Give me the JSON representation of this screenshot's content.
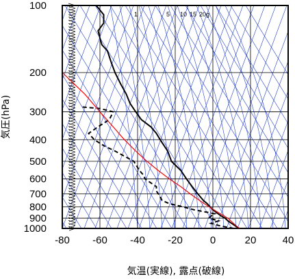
{
  "chart_data": {
    "type": "line",
    "title": "",
    "xlabel": "気温(実線), 露点(破線)",
    "ylabel": "気圧(hPa)",
    "xlim": [
      -80,
      40
    ],
    "ylim": [
      1000,
      100
    ],
    "y_scale": "log",
    "x_ticks": [
      "-80",
      "-60",
      "-40",
      "-20",
      "0",
      "20",
      "40"
    ],
    "y_ticks": [
      "100",
      "200",
      "300",
      "400",
      "500",
      "600",
      "700",
      "800",
      "900",
      "1000"
    ],
    "mixing_ratio_labels": [
      "1",
      "5",
      "10",
      "15",
      "20g"
    ],
    "series": [
      {
        "kind": "temperature",
        "style": "solid",
        "color": "#000000",
        "points": [
          [
            1000,
            14
          ],
          [
            975,
            12
          ],
          [
            950,
            10
          ],
          [
            925,
            8
          ],
          [
            900,
            6.5
          ],
          [
            875,
            4
          ],
          [
            850,
            2
          ],
          [
            825,
            0
          ],
          [
            800,
            -1.5
          ],
          [
            775,
            -3
          ],
          [
            750,
            -5
          ],
          [
            700,
            -8
          ],
          [
            650,
            -11
          ],
          [
            600,
            -14
          ],
          [
            550,
            -17
          ],
          [
            500,
            -22
          ],
          [
            450,
            -24
          ],
          [
            400,
            -28
          ],
          [
            375,
            -30
          ],
          [
            350,
            -33
          ],
          [
            325,
            -38
          ],
          [
            300,
            -41
          ],
          [
            275,
            -44
          ],
          [
            250,
            -46
          ],
          [
            225,
            -49
          ],
          [
            200,
            -52
          ],
          [
            180,
            -54
          ],
          [
            160,
            -56
          ],
          [
            150,
            -59
          ],
          [
            140,
            -60
          ],
          [
            130,
            -61
          ],
          [
            120,
            -58
          ],
          [
            110,
            -58
          ],
          [
            100,
            -62
          ]
        ]
      },
      {
        "kind": "dewpoint",
        "style": "dashed",
        "color": "#000000",
        "points": [
          [
            1000,
            11
          ],
          [
            975,
            4
          ],
          [
            950,
            -1
          ],
          [
            925,
            3
          ],
          [
            900,
            -2
          ],
          [
            880,
            -1
          ],
          [
            860,
            1
          ],
          [
            850,
            -2
          ],
          [
            825,
            -10
          ],
          [
            800,
            -16
          ],
          [
            775,
            -23
          ],
          [
            750,
            -27
          ],
          [
            720,
            -28
          ],
          [
            700,
            -29
          ],
          [
            680,
            -30
          ],
          [
            650,
            -30
          ],
          [
            600,
            -36
          ],
          [
            575,
            -37
          ],
          [
            550,
            -39
          ],
          [
            500,
            -42
          ],
          [
            450,
            -52
          ],
          [
            425,
            -58
          ],
          [
            400,
            -63
          ],
          [
            375,
            -66
          ],
          [
            350,
            -61
          ],
          [
            325,
            -55
          ],
          [
            300,
            -53
          ],
          [
            290,
            -60
          ],
          [
            285,
            -70
          ]
        ]
      },
      {
        "kind": "parcel",
        "style": "solid",
        "color": "#ff0000",
        "points": [
          [
            1000,
            14
          ],
          [
            950,
            11
          ],
          [
            900,
            8
          ],
          [
            850,
            3
          ],
          [
            800,
            -2
          ],
          [
            750,
            -7
          ],
          [
            700,
            -12
          ],
          [
            650,
            -17
          ],
          [
            600,
            -23
          ],
          [
            550,
            -29
          ],
          [
            500,
            -35
          ],
          [
            450,
            -41
          ],
          [
            400,
            -47
          ],
          [
            350,
            -53
          ],
          [
            300,
            -60
          ],
          [
            250,
            -68
          ],
          [
            200,
            -80
          ]
        ]
      }
    ],
    "grid": true,
    "background_lines": [
      "dry adiabats (blue)",
      "moist adiabats (blue)",
      "saturation mixing ratio (blue)",
      "isotherms (blue)"
    ],
    "wind_barbs": "left margin, 1000–100 hPa",
    "colors": {
      "grid": "#000000",
      "adiabats": "#1f3fd0",
      "parcel": "#ff0000",
      "profile": "#000000"
    }
  }
}
